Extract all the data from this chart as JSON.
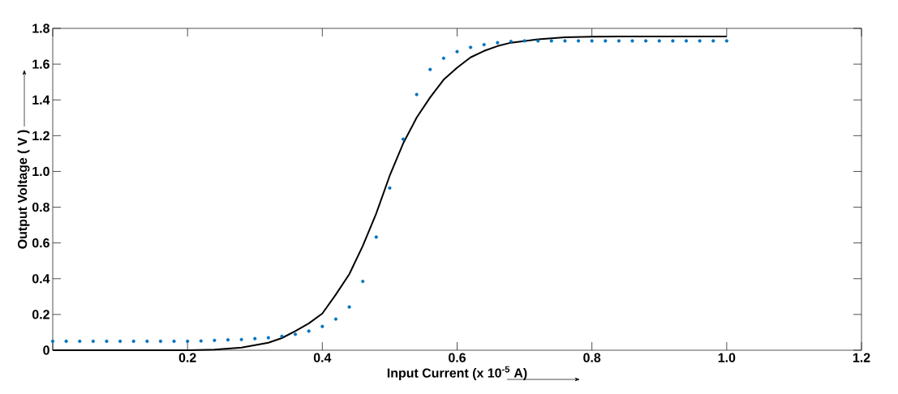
{
  "chart_data": {
    "type": "scatter",
    "xlabel": "Input Current (x 10$^{-5}$ A)",
    "ylabel": "Output Voltage ( V )",
    "xlim": [
      0,
      1.2
    ],
    "ylim": [
      0,
      1.8
    ],
    "xticks": [
      {
        "value": 0,
        "label": null
      },
      0.2,
      0.4,
      0.6,
      0.8,
      {
        "value": 1,
        "label": "1.0"
      },
      1.2
    ],
    "yticks": [
      0,
      0.2,
      0.4,
      0.6,
      0.8,
      {
        "value": 1,
        "label": "1.0"
      },
      1.2,
      1.4,
      1.6,
      1.8
    ],
    "series": [
      {
        "type": "line",
        "color": "#000000",
        "marker": "none",
        "line_style": "solid",
        "x": [
          0,
          0.1,
          0.2,
          0.24,
          0.28,
          0.3,
          0.32,
          0.34,
          0.36,
          0.38,
          0.4,
          0.42,
          0.44,
          0.46,
          0.48,
          0.5,
          0.52,
          0.54,
          0.56,
          0.58,
          0.6,
          0.62,
          0.64,
          0.66,
          0.68,
          0.72,
          0.76,
          0.8,
          0.9,
          1.0
        ],
        "values": [
          0,
          0,
          0,
          0.003,
          0.015,
          0.028,
          0.042,
          0.068,
          0.107,
          0.15,
          0.205,
          0.311,
          0.425,
          0.583,
          0.765,
          0.976,
          1.157,
          1.301,
          1.414,
          1.513,
          1.58,
          1.638,
          1.674,
          1.701,
          1.72,
          1.739,
          1.75,
          1.754,
          1.755,
          1.755
        ]
      },
      {
        "color": "#0072bd",
        "marker": "circle",
        "x": [
          0,
          0.02,
          0.04,
          0.06,
          0.08,
          0.1,
          0.12,
          0.14,
          0.16,
          0.18,
          0.2,
          0.22,
          0.24,
          0.26,
          0.28,
          0.3,
          0.32,
          0.34,
          0.36,
          0.38,
          0.4,
          0.42,
          0.44,
          0.46,
          0.48,
          0.5,
          0.52,
          0.54,
          0.56,
          0.58,
          0.6,
          0.62,
          0.64,
          0.66,
          0.68,
          0.7,
          0.72,
          0.74,
          0.76,
          0.78,
          0.8,
          0.82,
          0.84,
          0.86,
          0.88,
          0.9,
          0.92,
          0.94,
          0.96,
          0.98,
          1.0
        ],
        "values": [
          0.05,
          0.05,
          0.05,
          0.05,
          0.05,
          0.05,
          0.05,
          0.05,
          0.05,
          0.05,
          0.05,
          0.052,
          0.055,
          0.058,
          0.06,
          0.065,
          0.07,
          0.078,
          0.089,
          0.107,
          0.133,
          0.174,
          0.242,
          0.385,
          0.633,
          0.907,
          1.18,
          1.43,
          1.57,
          1.633,
          1.67,
          1.694,
          1.709,
          1.72,
          1.727,
          1.73,
          1.73,
          1.73,
          1.73,
          1.73,
          1.73,
          1.73,
          1.73,
          1.73,
          1.73,
          1.73,
          1.73,
          1.73,
          1.73,
          1.73,
          1.73
        ]
      }
    ]
  }
}
